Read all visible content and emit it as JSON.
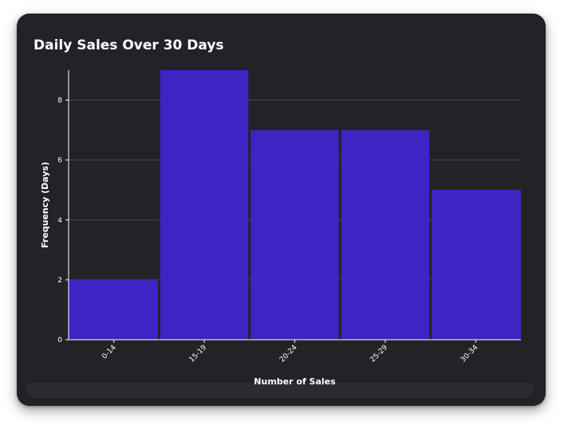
{
  "chart_data": {
    "type": "bar",
    "title": "Daily Sales Over 30 Days",
    "xlabel": "Number of Sales",
    "ylabel": "Frequency (Days)",
    "categories": [
      "0-14",
      "15-19",
      "20-24",
      "25-29",
      "30-34"
    ],
    "values": [
      2,
      9,
      7,
      7,
      5
    ],
    "ylim": [
      0,
      9
    ],
    "yticks": [
      0,
      2,
      4,
      6,
      8
    ],
    "grid": true,
    "colors": {
      "bar": "#3d25c4",
      "background": "#222327",
      "grid": "#4a4b50",
      "axis": "#ffffff",
      "text": "#ffffff"
    }
  }
}
